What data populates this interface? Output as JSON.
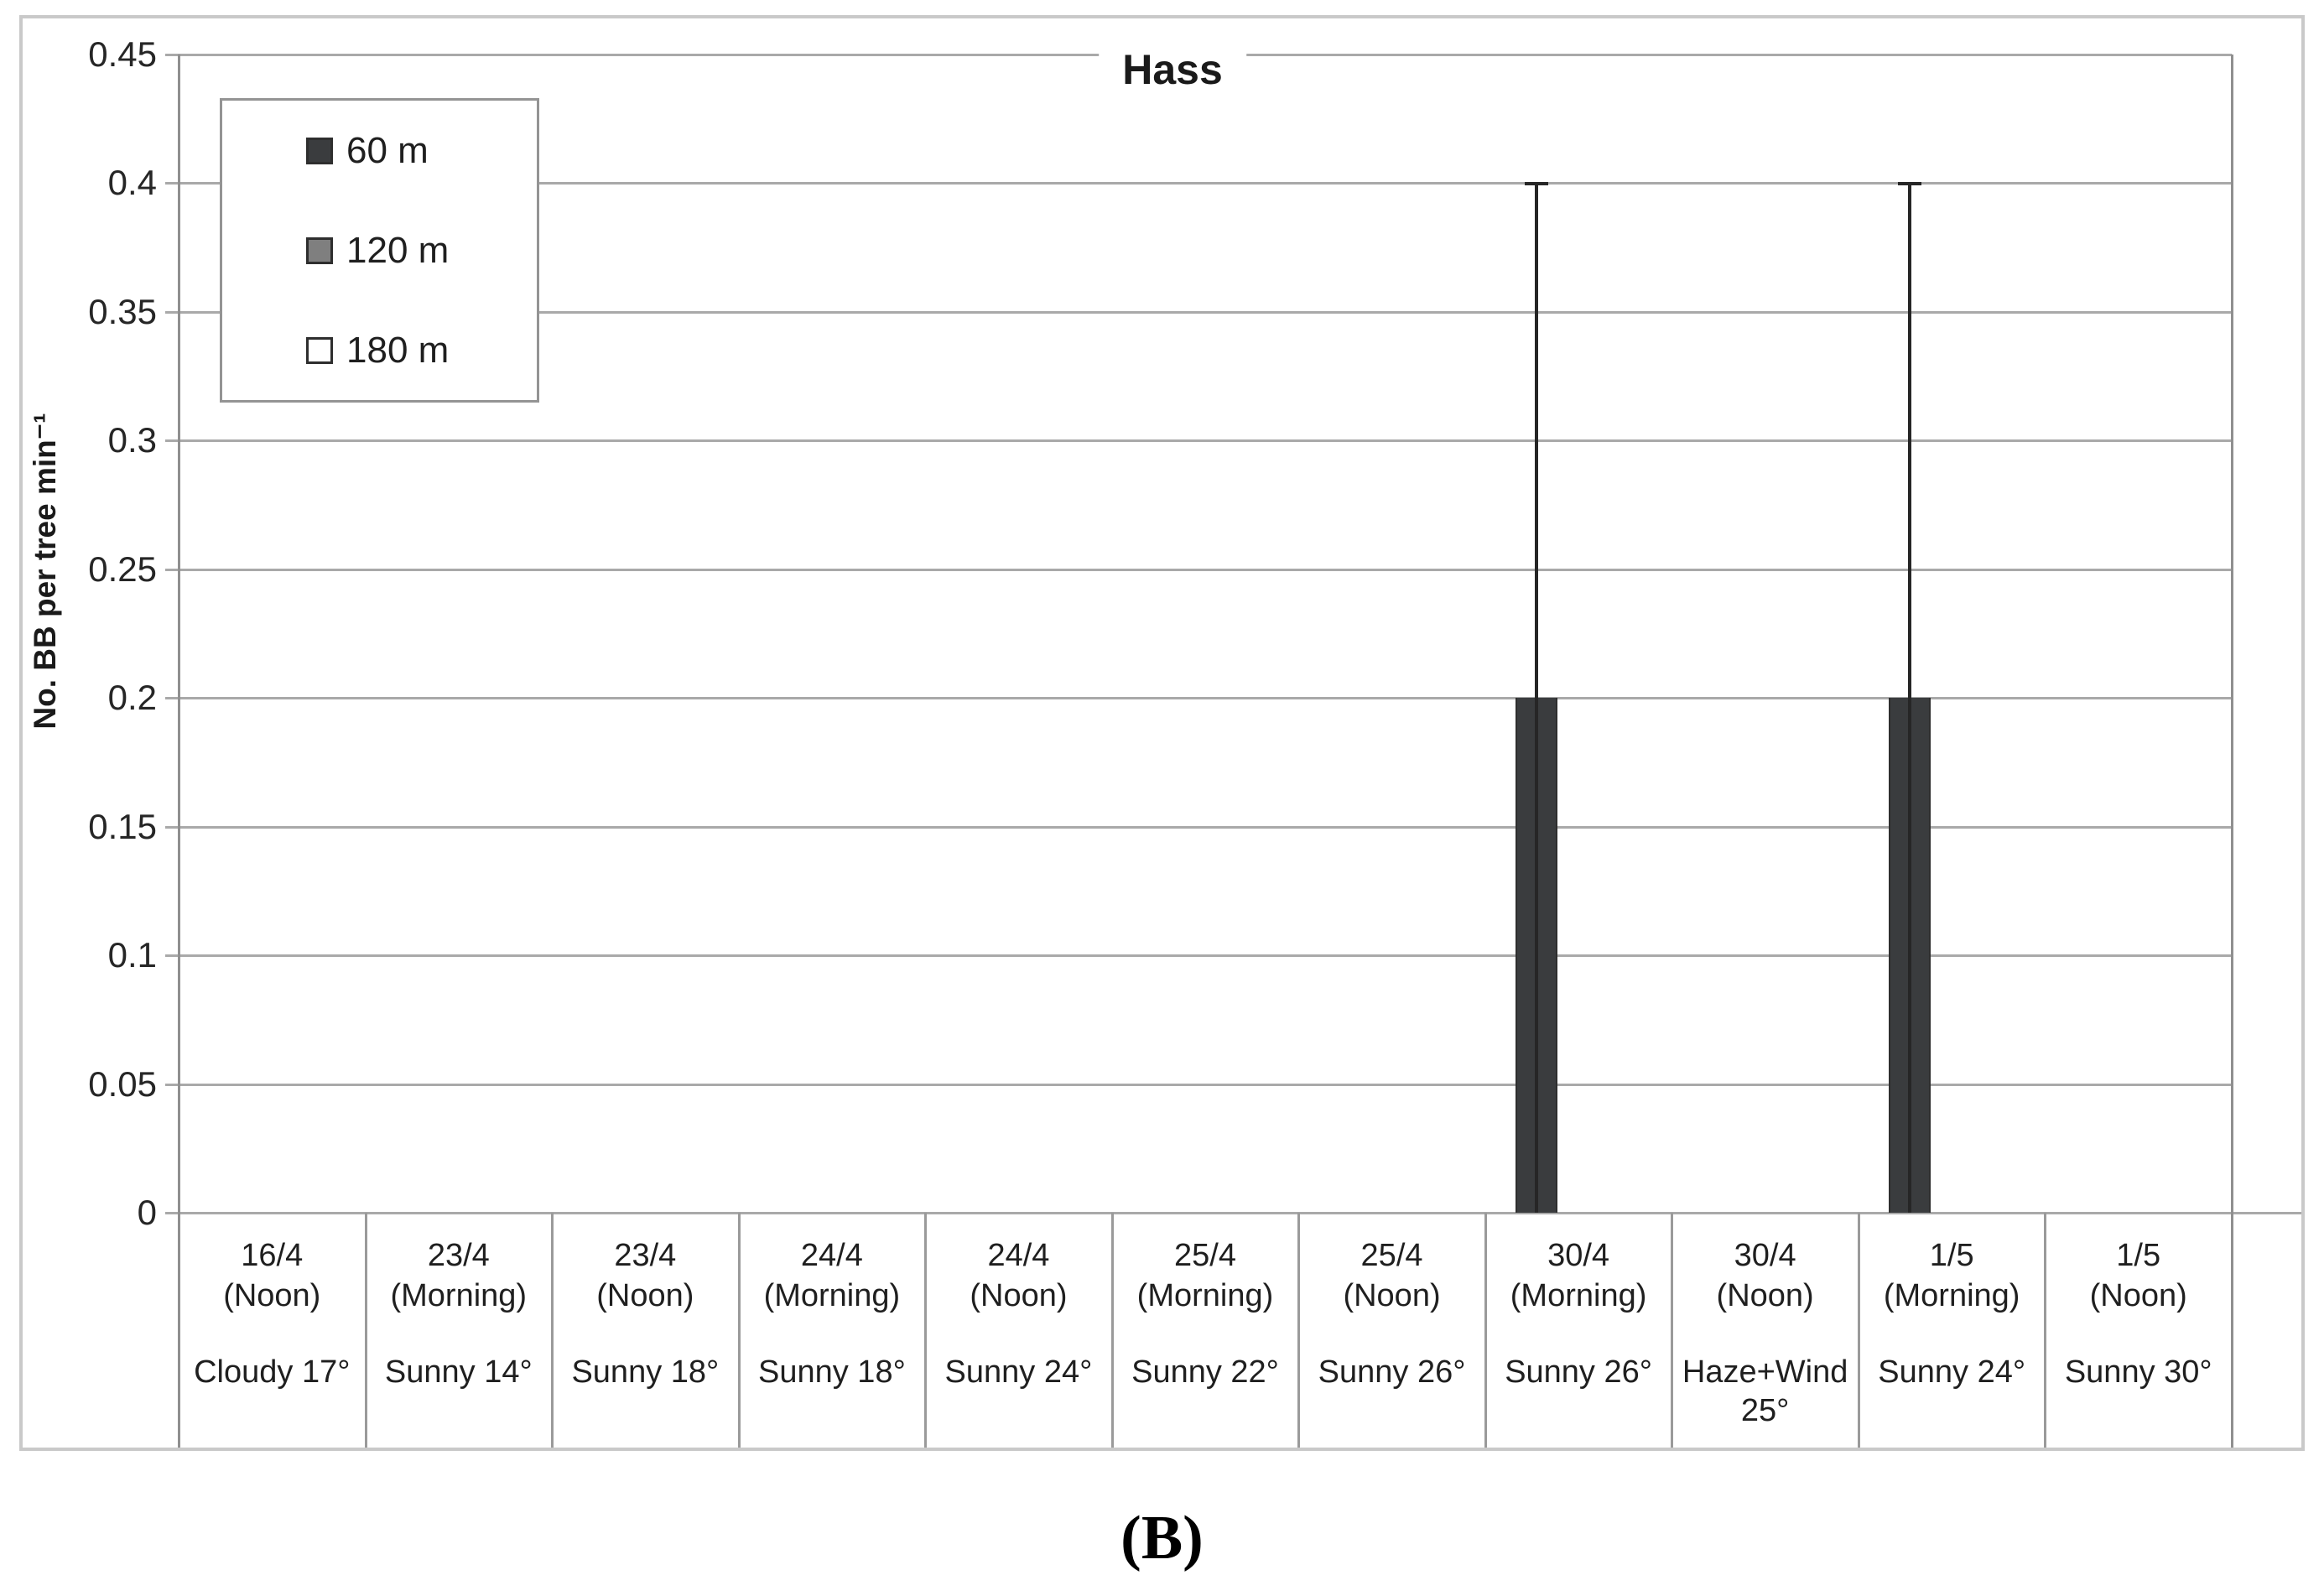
{
  "caption": "(B)",
  "colors": {
    "gridline": "#a9a9a9",
    "axis": "#8f8f8f",
    "outer_border": "#c9c9c9",
    "error_bar": "#262626",
    "text": "#1f1f1f",
    "bar_60m": "#3a3c3e",
    "swatch_120m": "#7f7f7f",
    "swatch_180m": "#ffffff"
  },
  "chart_data": {
    "type": "bar",
    "title": "Hass",
    "ylabel": "No. BB per tree min⁻¹",
    "xlabel": "",
    "ylim": [
      0,
      0.45
    ],
    "ytick_step": 0.05,
    "grid": true,
    "legend_position": "inside-top-left",
    "categories": [
      {
        "date": "16/4",
        "session": "(Noon)",
        "weather": "Cloudy 17°"
      },
      {
        "date": "23/4",
        "session": "(Morning)",
        "weather": "Sunny 14°"
      },
      {
        "date": "23/4",
        "session": "(Noon)",
        "weather": "Sunny 18°"
      },
      {
        "date": "24/4",
        "session": "(Morning)",
        "weather": "Sunny 18°"
      },
      {
        "date": "24/4",
        "session": "(Noon)",
        "weather": "Sunny 24°"
      },
      {
        "date": "25/4",
        "session": "(Morning)",
        "weather": "Sunny 22°"
      },
      {
        "date": "25/4",
        "session": "(Noon)",
        "weather": "Sunny 26°"
      },
      {
        "date": "30/4",
        "session": "(Morning)",
        "weather": "Sunny 26°"
      },
      {
        "date": "30/4",
        "session": "(Noon)",
        "weather": "Haze+Wind 25°"
      },
      {
        "date": "1/5",
        "session": "(Morning)",
        "weather": "Sunny 24°"
      },
      {
        "date": "1/5",
        "session": "(Noon)",
        "weather": "Sunny 30°"
      }
    ],
    "series": [
      {
        "name": "60 m",
        "fill": "#3a3c3e",
        "border": "#2e2e2e",
        "values": [
          0,
          0,
          0,
          0,
          0,
          0,
          0,
          0.2,
          0,
          0.2,
          0
        ],
        "errors": [
          0,
          0,
          0,
          0,
          0,
          0,
          0,
          0.2,
          0,
          0.2,
          0
        ]
      },
      {
        "name": "120 m",
        "fill": "#7f7f7f",
        "border": "#2e2e2e",
        "values": [
          0,
          0,
          0,
          0,
          0,
          0,
          0,
          0,
          0,
          0,
          0
        ],
        "errors": [
          0,
          0,
          0,
          0,
          0,
          0,
          0,
          0,
          0,
          0,
          0
        ]
      },
      {
        "name": "180 m",
        "fill": "#ffffff",
        "border": "#2e2e2e",
        "values": [
          0,
          0,
          0,
          0,
          0,
          0,
          0,
          0,
          0,
          0,
          0
        ],
        "errors": [
          0,
          0,
          0,
          0,
          0,
          0,
          0,
          0,
          0,
          0,
          0
        ]
      }
    ]
  }
}
